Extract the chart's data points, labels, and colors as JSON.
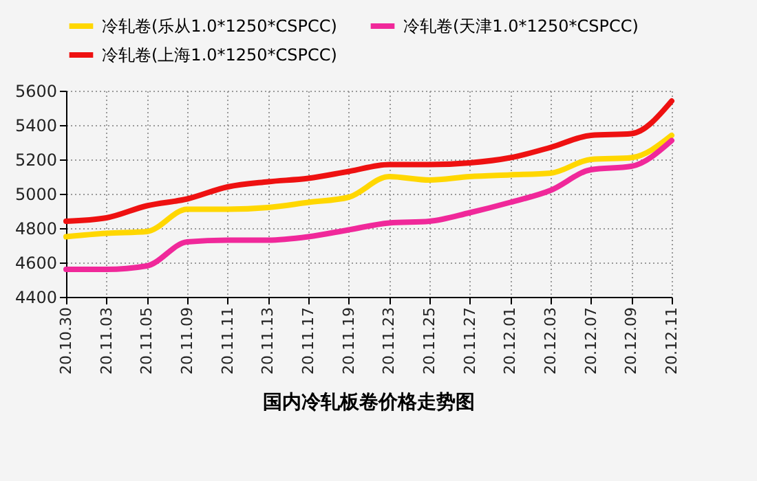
{
  "chart_data": {
    "type": "line",
    "title": "国内冷轧板卷价格走势图",
    "categories": [
      "20.10.30",
      "20.11.03",
      "20.11.05",
      "20.11.09",
      "20.11.11",
      "20.11.13",
      "20.11.17",
      "20.11.19",
      "20.11.23",
      "20.11.25",
      "20.11.27",
      "20.12.01",
      "20.12.03",
      "20.12.07",
      "20.12.09",
      "20.12.11"
    ],
    "series": [
      {
        "name": "冷轧卷(乐从1.0*1250*CSPCC)",
        "color": "#ffd700",
        "values": [
          4750,
          4770,
          4780,
          4910,
          4910,
          4920,
          4950,
          4980,
          5100,
          5080,
          5100,
          5110,
          5120,
          5200,
          5210,
          5340
        ]
      },
      {
        "name": "冷轧卷(天津1.0*1250*CSPCC)",
        "color": "#f0289a",
        "values": [
          4560,
          4560,
          4580,
          4720,
          4730,
          4730,
          4750,
          4790,
          4830,
          4840,
          4890,
          4950,
          5020,
          5140,
          5160,
          5310
        ]
      },
      {
        "name": "冷轧卷(上海1.0*1250*CSPCC)",
        "color": "#ee1111",
        "values": [
          4840,
          4860,
          4930,
          4970,
          5040,
          5070,
          5090,
          5130,
          5170,
          5170,
          5180,
          5210,
          5270,
          5340,
          5350,
          5540
        ]
      }
    ],
    "ylim": [
      4400,
      5600
    ],
    "yticks": [
      4400,
      4600,
      4800,
      5000,
      5200,
      5400,
      5600
    ],
    "grid": true,
    "legend": "top"
  }
}
